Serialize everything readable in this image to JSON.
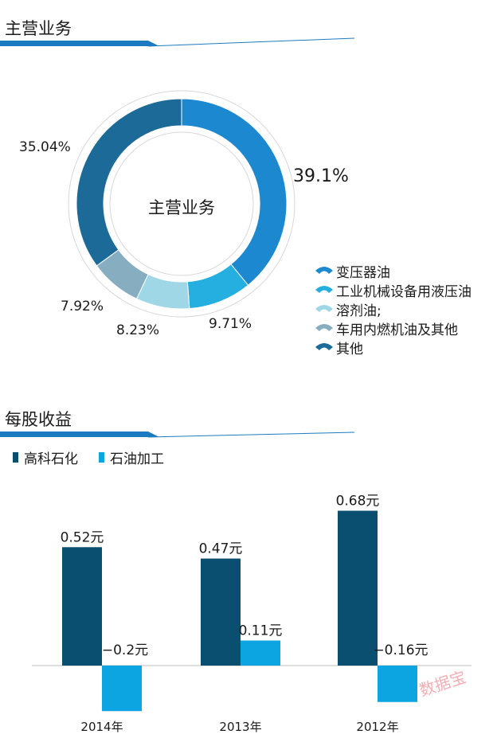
{
  "section1": {
    "title": "主营业务"
  },
  "section2": {
    "title": "每股收益"
  },
  "watermark": "数据宝",
  "colors": {
    "rule": "#1c7bc0",
    "dark_bar": "#0a4f6f",
    "light_bar": "#0ca4e1"
  },
  "chart_data": [
    {
      "type": "pie",
      "title": "",
      "center_label": "主营业务",
      "slices": [
        {
          "name": "变压器油",
          "value": 39.1,
          "label": "39.1%",
          "color": "#1b88cf"
        },
        {
          "name": "工业机械设备用液压油",
          "value": 9.71,
          "label": "9.71%",
          "color": "#25aee0"
        },
        {
          "name": "溶剂油;",
          "value": 8.23,
          "label": "8.23%",
          "color": "#9fd7e6"
        },
        {
          "name": "车用内燃机油及其他",
          "value": 7.92,
          "label": "7.92%",
          "color": "#86adc0"
        },
        {
          "name": "其他",
          "value": 35.04,
          "label": "35.04%",
          "color": "#1c6a98"
        }
      ],
      "legend_position": "bottom-right"
    },
    {
      "type": "bar",
      "title": "",
      "categories": [
        "2014年",
        "2013年",
        "2012年"
      ],
      "series": [
        {
          "name": "高科石化",
          "values": [
            0.52,
            0.47,
            0.68
          ],
          "labels": [
            "0.52元",
            "0.47元",
            "0.68元"
          ],
          "color": "#0a4f6f"
        },
        {
          "name": "石油加工",
          "values": [
            -0.2,
            0.11,
            -0.16
          ],
          "labels": [
            "−0.2元",
            "0.11元",
            "−0.16元"
          ],
          "color": "#0ca4e1"
        }
      ],
      "ylim": [
        -0.2,
        0.7
      ],
      "legend_position": "top-left",
      "grid": false
    }
  ]
}
